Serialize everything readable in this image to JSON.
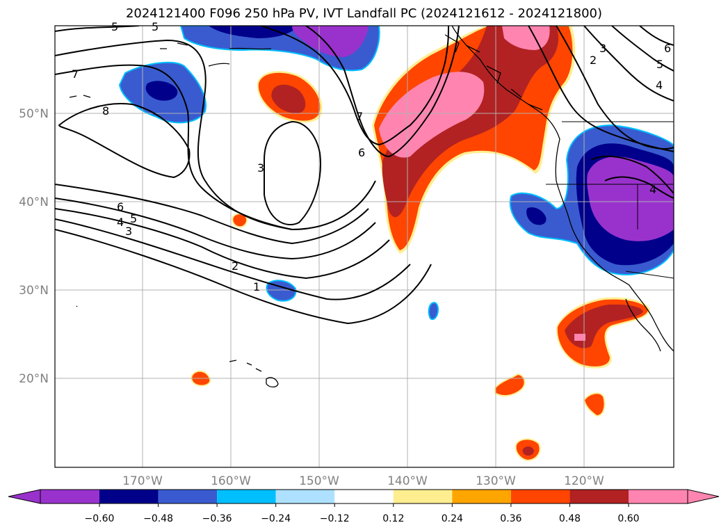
{
  "title": "2024121400 F096 250 hPa PV, IVT Landfall PC (2024121612 - 2024121800)",
  "map": {
    "lat_ticks": [
      "50°N",
      "40°N",
      "30°N",
      "20°N"
    ],
    "lon_ticks": [
      "170°W",
      "160°W",
      "150°W",
      "140°W",
      "130°W",
      "120°W"
    ],
    "gridlines": true,
    "pv_contour_labels": [
      "5",
      "5",
      "7",
      "8",
      "6",
      "5",
      "4",
      "3",
      "2",
      "1",
      "3",
      "7",
      "6",
      "2",
      "3",
      "6",
      "5",
      "4",
      "4"
    ]
  },
  "colorbar": {
    "tick_labels": [
      "−0.60",
      "−0.48",
      "−0.36",
      "−0.24",
      "−0.12",
      "0.12",
      "0.24",
      "0.36",
      "0.48",
      "0.60"
    ],
    "colors": [
      "#9932CC",
      "#00008B",
      "#3A5BCF",
      "#00BFFF",
      "#ADE1FF",
      "#FFFFFF",
      "#FFEE90",
      "#FFA500",
      "#FF4500",
      "#B22222",
      "#FF85B0"
    ],
    "extend": "both"
  }
}
